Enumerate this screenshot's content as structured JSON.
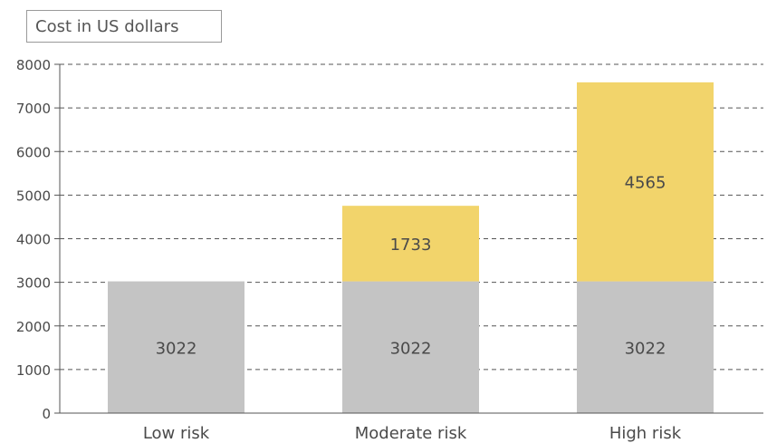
{
  "chart_data": {
    "type": "bar",
    "stacked": true,
    "ylabel": "Cost in US dollars",
    "categories": [
      "Low risk",
      "Moderate risk",
      "High risk"
    ],
    "series": [
      {
        "values": [
          3022,
          3022,
          3022
        ],
        "color": "#c4c4c4"
      },
      {
        "values": [
          0,
          1733,
          4565
        ],
        "color": "#f2d46b"
      }
    ],
    "ylim": [
      0,
      8000
    ],
    "yticks": [
      0,
      1000,
      2000,
      3000,
      4000,
      5000,
      6000,
      7000,
      8000
    ],
    "grid": true,
    "grid_style": "dashed",
    "data_labels": true
  }
}
